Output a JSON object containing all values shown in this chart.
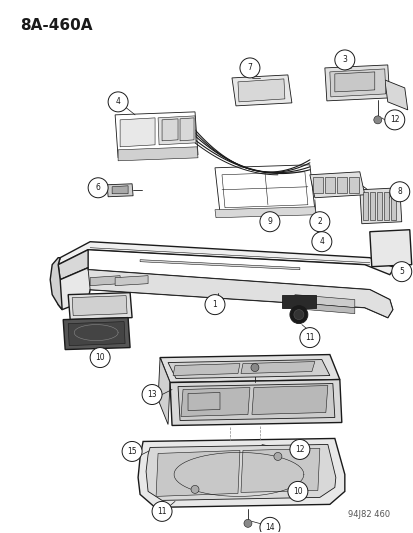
{
  "title": "8A-460A",
  "footer": "94J82 460",
  "bg_color": "#ffffff",
  "line_color": "#1a1a1a",
  "title_fontsize": 11,
  "footer_fontsize": 6.5,
  "lw_main": 1.0,
  "lw_thin": 0.6,
  "lw_hair": 0.4,
  "circle_r": 0.018,
  "circle_fs": 5.5
}
